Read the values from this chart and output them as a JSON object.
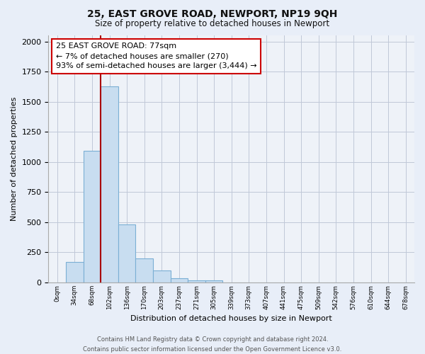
{
  "title": "25, EAST GROVE ROAD, NEWPORT, NP19 9QH",
  "subtitle": "Size of property relative to detached houses in Newport",
  "xlabel": "Distribution of detached houses by size in Newport",
  "ylabel": "Number of detached properties",
  "bar_labels": [
    "0sqm",
    "34sqm",
    "68sqm",
    "102sqm",
    "136sqm",
    "170sqm",
    "203sqm",
    "237sqm",
    "271sqm",
    "305sqm",
    "339sqm",
    "373sqm",
    "407sqm",
    "441sqm",
    "475sqm",
    "509sqm",
    "542sqm",
    "576sqm",
    "610sqm",
    "644sqm",
    "678sqm"
  ],
  "bar_values": [
    0,
    170,
    1095,
    1630,
    480,
    200,
    100,
    35,
    20,
    15,
    0,
    0,
    0,
    0,
    0,
    0,
    0,
    0,
    0,
    0,
    0
  ],
  "bar_color": "#c8ddf0",
  "bar_edge_color": "#7bafd4",
  "vline_x": 2.5,
  "vline_color": "#aa0000",
  "annotation_text": "25 EAST GROVE ROAD: 77sqm\n← 7% of detached houses are smaller (270)\n93% of semi-detached houses are larger (3,444) →",
  "ylim": [
    0,
    2050
  ],
  "xlim": [
    -0.5,
    20.5
  ],
  "footer_line1": "Contains HM Land Registry data © Crown copyright and database right 2024.",
  "footer_line2": "Contains public sector information licensed under the Open Government Licence v3.0.",
  "bg_color": "#e8eef8",
  "plot_bg_color": "#eef2f8",
  "grid_color": "#c0c8d8"
}
